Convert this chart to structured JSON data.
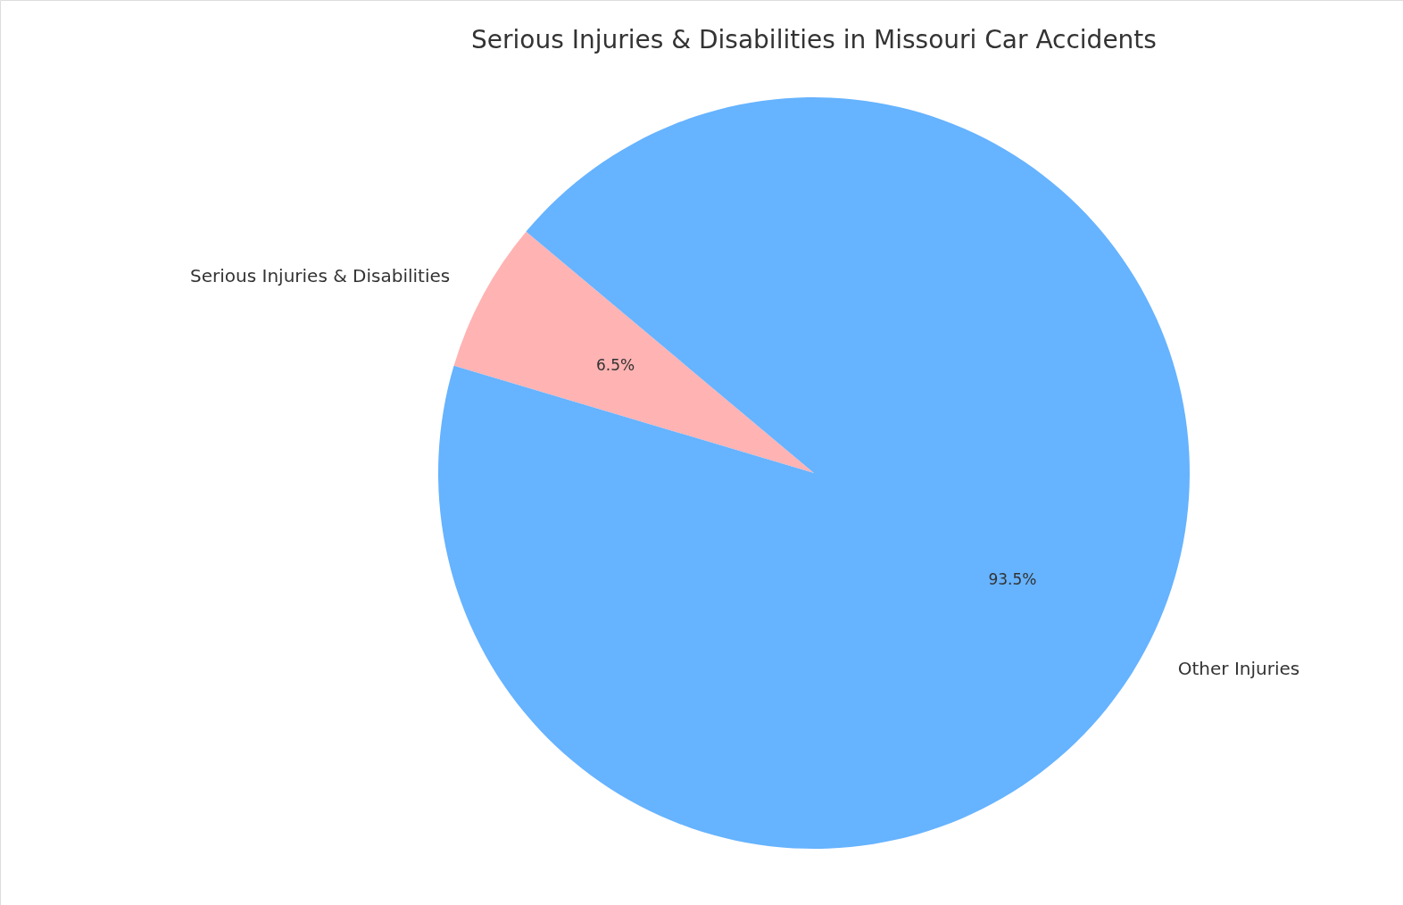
{
  "chart_data": {
    "type": "pie",
    "title": "Serious Injuries & Disabilities in Missouri Car Accidents",
    "categories": [
      "Serious Injuries & Disabilities",
      "Other Injuries"
    ],
    "values": [
      6.5,
      93.5
    ],
    "colors": [
      "#ffb3b3",
      "#66b3ff"
    ],
    "value_labels": [
      "6.5%",
      "93.5%"
    ],
    "legend": false
  }
}
